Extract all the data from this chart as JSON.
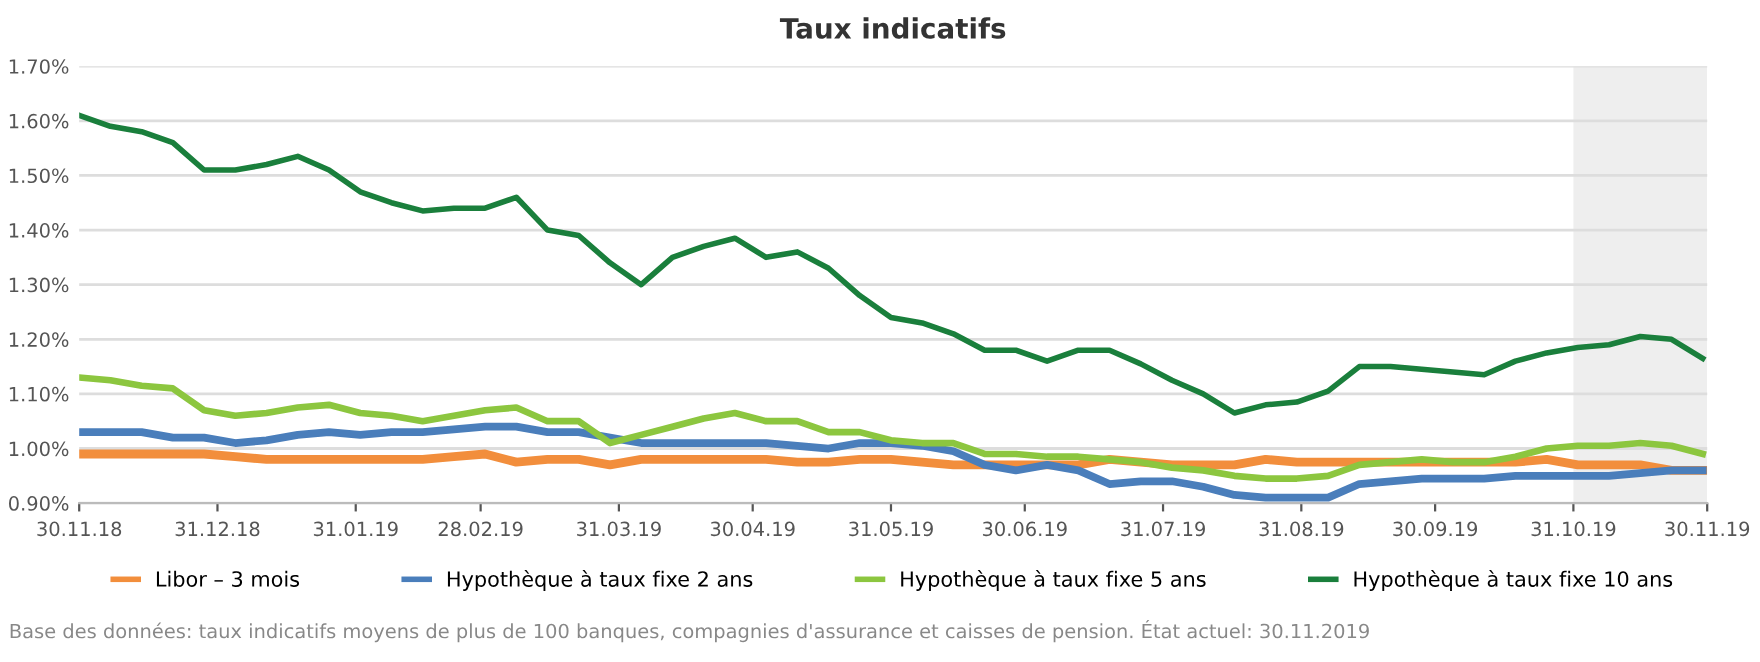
{
  "chart_data": {
    "type": "line",
    "title": "Taux indicatifs",
    "x": [
      "2018-11-30",
      "2018-12-07",
      "2018-12-14",
      "2018-12-21",
      "2018-12-28",
      "2019-01-04",
      "2019-01-11",
      "2019-01-18",
      "2019-01-25",
      "2019-02-01",
      "2019-02-08",
      "2019-02-15",
      "2019-02-22",
      "2019-03-01",
      "2019-03-08",
      "2019-03-15",
      "2019-03-22",
      "2019-03-29",
      "2019-04-05",
      "2019-04-12",
      "2019-04-19",
      "2019-04-26",
      "2019-05-03",
      "2019-05-10",
      "2019-05-17",
      "2019-05-24",
      "2019-05-31",
      "2019-06-07",
      "2019-06-14",
      "2019-06-21",
      "2019-06-28",
      "2019-07-05",
      "2019-07-12",
      "2019-07-19",
      "2019-07-26",
      "2019-08-02",
      "2019-08-09",
      "2019-08-16",
      "2019-08-23",
      "2019-08-30",
      "2019-09-06",
      "2019-09-13",
      "2019-09-20",
      "2019-09-27",
      "2019-10-04",
      "2019-10-11",
      "2019-10-18",
      "2019-10-25",
      "2019-11-01",
      "2019-11-08",
      "2019-11-15",
      "2019-11-22",
      "2019-11-29"
    ],
    "series": [
      {
        "name": "Libor – 3 mois",
        "color": "#f28e3c",
        "values": [
          0.99,
          0.99,
          0.99,
          0.99,
          0.99,
          0.985,
          0.98,
          0.98,
          0.98,
          0.98,
          0.98,
          0.98,
          0.985,
          0.99,
          0.975,
          0.98,
          0.98,
          0.97,
          0.98,
          0.98,
          0.98,
          0.98,
          0.98,
          0.975,
          0.975,
          0.98,
          0.98,
          0.975,
          0.97,
          0.97,
          0.97,
          0.97,
          0.97,
          0.98,
          0.975,
          0.97,
          0.97,
          0.97,
          0.98,
          0.975,
          0.975,
          0.975,
          0.975,
          0.975,
          0.975,
          0.975,
          0.975,
          0.98,
          0.97,
          0.97,
          0.97,
          0.96,
          0.96
        ]
      },
      {
        "name": "Hypothèque à taux fixe 2 ans",
        "color": "#4a7ebb",
        "values": [
          1.03,
          1.03,
          1.03,
          1.02,
          1.02,
          1.01,
          1.015,
          1.025,
          1.03,
          1.025,
          1.03,
          1.03,
          1.035,
          1.04,
          1.04,
          1.03,
          1.03,
          1.02,
          1.01,
          1.01,
          1.01,
          1.01,
          1.01,
          1.005,
          1.0,
          1.01,
          1.01,
          1.005,
          0.995,
          0.97,
          0.96,
          0.97,
          0.96,
          0.935,
          0.94,
          0.94,
          0.93,
          0.915,
          0.91,
          0.91,
          0.91,
          0.935,
          0.94,
          0.945,
          0.945,
          0.945,
          0.95,
          0.95,
          0.95,
          0.95,
          0.955,
          0.96,
          0.96
        ]
      },
      {
        "name": "Hypothèque à taux fixe 5 ans",
        "color": "#8cc63f",
        "values": [
          1.13,
          1.125,
          1.115,
          1.11,
          1.07,
          1.06,
          1.065,
          1.075,
          1.08,
          1.065,
          1.06,
          1.05,
          1.06,
          1.07,
          1.075,
          1.05,
          1.05,
          1.01,
          1.025,
          1.04,
          1.055,
          1.065,
          1.05,
          1.05,
          1.03,
          1.03,
          1.015,
          1.01,
          1.01,
          0.99,
          0.99,
          0.985,
          0.985,
          0.98,
          0.975,
          0.965,
          0.96,
          0.95,
          0.945,
          0.945,
          0.95,
          0.97,
          0.975,
          0.98,
          0.975,
          0.975,
          0.985,
          1.0,
          1.005,
          1.005,
          1.01,
          1.005,
          0.99
        ]
      },
      {
        "name": "Hypothèque à taux fixe 10 ans",
        "color": "#1a7f3c",
        "values": [
          1.61,
          1.59,
          1.58,
          1.56,
          1.51,
          1.51,
          1.52,
          1.535,
          1.51,
          1.47,
          1.45,
          1.435,
          1.44,
          1.44,
          1.46,
          1.4,
          1.39,
          1.34,
          1.3,
          1.35,
          1.37,
          1.385,
          1.35,
          1.36,
          1.33,
          1.28,
          1.24,
          1.23,
          1.21,
          1.18,
          1.18,
          1.16,
          1.18,
          1.18,
          1.155,
          1.125,
          1.1,
          1.065,
          1.08,
          1.085,
          1.105,
          1.15,
          1.15,
          1.145,
          1.14,
          1.135,
          1.16,
          1.175,
          1.185,
          1.19,
          1.205,
          1.2,
          1.165
        ]
      }
    ],
    "xlim": [
      "2018-11-30",
      "2019-11-30"
    ],
    "xticks": [
      {
        "value": "2018-11-30",
        "label": "30.11.18"
      },
      {
        "value": "2018-12-31",
        "label": "31.12.18"
      },
      {
        "value": "2019-01-31",
        "label": "31.01.19"
      },
      {
        "value": "2019-02-28",
        "label": "28.02.19"
      },
      {
        "value": "2019-03-31",
        "label": "31.03.19"
      },
      {
        "value": "2019-04-30",
        "label": "30.04.19"
      },
      {
        "value": "2019-05-31",
        "label": "31.05.19"
      },
      {
        "value": "2019-06-30",
        "label": "30.06.19"
      },
      {
        "value": "2019-07-31",
        "label": "31.07.19"
      },
      {
        "value": "2019-08-31",
        "label": "31.08.19"
      },
      {
        "value": "2019-09-30",
        "label": "30.09.19"
      },
      {
        "value": "2019-10-31",
        "label": "31.10.19"
      },
      {
        "value": "2019-11-30",
        "label": "30.11.19"
      }
    ],
    "ylim": [
      0.9,
      1.7
    ],
    "yticks": [
      {
        "value": 0.9,
        "label": "0.90%"
      },
      {
        "value": 1.0,
        "label": "1.00%"
      },
      {
        "value": 1.1,
        "label": "1.10%"
      },
      {
        "value": 1.2,
        "label": "1.20%"
      },
      {
        "value": 1.3,
        "label": "1.30%"
      },
      {
        "value": 1.4,
        "label": "1.40%"
      },
      {
        "value": 1.5,
        "label": "1.50%"
      },
      {
        "value": 1.6,
        "label": "1.60%"
      },
      {
        "value": 1.7,
        "label": "1.70%"
      }
    ],
    "bands": [
      {
        "axis": "x",
        "from": "2019-10-31",
        "to": "2019-11-30",
        "color": "#eeeeee"
      }
    ],
    "grid": "y",
    "legend": "bottom",
    "line_style": "solid",
    "marker": "none",
    "annotations": [
      "Base des données: taux indicatifs moyens de plus de 100 banques, compagnies d'assurance et caisses de pension. État actuel: 30.11.2019"
    ]
  }
}
